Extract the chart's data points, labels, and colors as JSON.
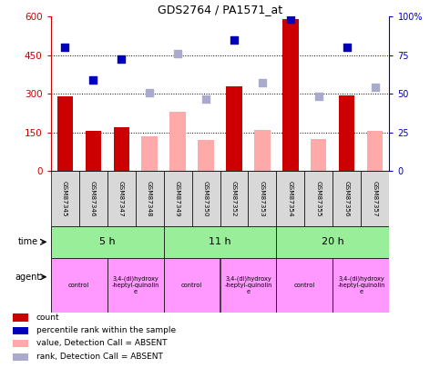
{
  "title": "GDS2764 / PA1571_at",
  "samples": [
    "GSM87345",
    "GSM87346",
    "GSM87347",
    "GSM87348",
    "GSM87349",
    "GSM87350",
    "GSM87352",
    "GSM87353",
    "GSM87354",
    "GSM87355",
    "GSM87356",
    "GSM87357"
  ],
  "bar_red_values": [
    290,
    158,
    170,
    null,
    null,
    null,
    330,
    null,
    590,
    null,
    295,
    null
  ],
  "bar_pink_values": [
    null,
    null,
    null,
    135,
    230,
    120,
    null,
    160,
    null,
    125,
    null,
    155
  ],
  "dot_blue_dark": [
    480,
    355,
    435,
    null,
    null,
    null,
    510,
    null,
    590,
    null,
    480,
    null
  ],
  "dot_blue_light": [
    null,
    null,
    null,
    305,
    455,
    280,
    null,
    345,
    null,
    290,
    null,
    325
  ],
  "ylim_left": [
    0,
    600
  ],
  "yticks_left": [
    0,
    150,
    300,
    450,
    600
  ],
  "ytick_labels_left": [
    "0",
    "150",
    "300",
    "450",
    "600"
  ],
  "yticks_right": [
    0,
    25,
    50,
    75,
    100
  ],
  "ytick_labels_right": [
    "0%",
    "25",
    "50",
    "75",
    "100%"
  ],
  "hlines": [
    150,
    300,
    450
  ],
  "color_red": "#cc0000",
  "color_pink": "#ffaaaa",
  "color_blue_dark": "#0000bb",
  "color_blue_light": "#aaaacc",
  "time_groups": [
    {
      "label": "5 h",
      "start": 0,
      "end": 4
    },
    {
      "label": "11 h",
      "start": 4,
      "end": 8
    },
    {
      "label": "20 h",
      "start": 8,
      "end": 12
    }
  ],
  "agent_groups": [
    {
      "label": "control",
      "start": 0,
      "end": 2
    },
    {
      "label": "3,4-(di)hydroxy\n-heptyl-quinolin\ne",
      "start": 2,
      "end": 4
    },
    {
      "label": "control",
      "start": 4,
      "end": 6
    },
    {
      "label": "3,4-(di)hydroxy\n-heptyl-quinolin\ne",
      "start": 6,
      "end": 8
    },
    {
      "label": "control",
      "start": 8,
      "end": 10
    },
    {
      "label": "3,4-(di)hydroxy\n-heptyl-quinolin\ne",
      "start": 10,
      "end": 12
    }
  ],
  "legend_items": [
    {
      "label": "count",
      "color": "#cc0000"
    },
    {
      "label": "percentile rank within the sample",
      "color": "#0000bb"
    },
    {
      "label": "value, Detection Call = ABSENT",
      "color": "#ffaaaa"
    },
    {
      "label": "rank, Detection Call = ABSENT",
      "color": "#aaaacc"
    }
  ],
  "fig_width": 4.83,
  "fig_height": 4.05,
  "fig_dpi": 100
}
